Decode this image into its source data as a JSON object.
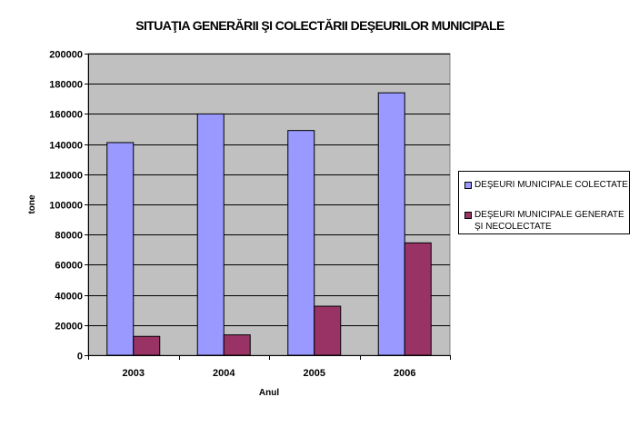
{
  "chart_data": {
    "type": "bar",
    "title": "SITUAŢIA GENERĂRII ŞI COLECTĂRII DEŞEURILOR MUNICIPALE",
    "xlabel": "Anul",
    "ylabel": "tone",
    "categories": [
      "2003",
      "2004",
      "2005",
      "2006"
    ],
    "ylim": [
      0,
      200000
    ],
    "yticks": [
      "0",
      "20000",
      "40000",
      "60000",
      "80000",
      "100000",
      "120000",
      "140000",
      "160000",
      "180000",
      "200000"
    ],
    "grid": true,
    "legend_position": "right",
    "plot_background": "#c0c0c0",
    "series": [
      {
        "name": "DEŞEURI MUNICIPALE COLECTATE",
        "color": "#9999ff",
        "values": [
          141000,
          160000,
          149000,
          174000
        ]
      },
      {
        "name": "DEŞEURI MUNICIPALE GENERATE ŞI NECOLECTATE",
        "color": "#993366",
        "values": [
          12500,
          13500,
          32500,
          74500
        ]
      }
    ]
  }
}
